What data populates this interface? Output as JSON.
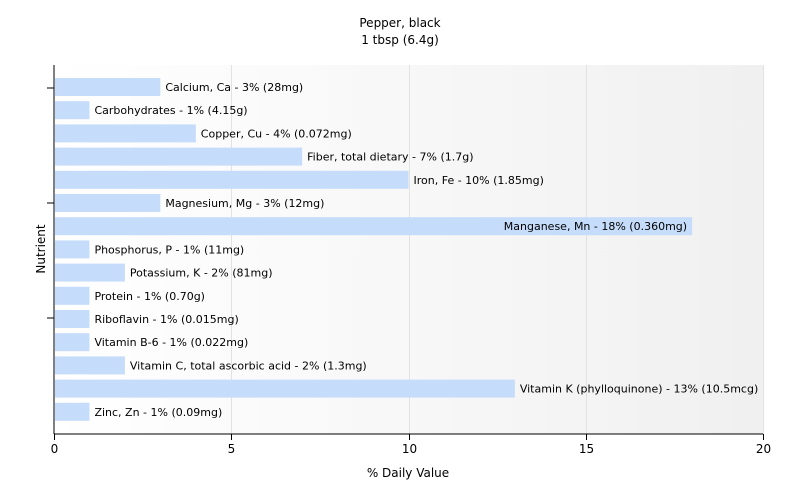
{
  "chart_data": {
    "type": "bar",
    "orientation": "horizontal",
    "title": "Pepper, black",
    "subtitle": "1 tbsp (6.4g)",
    "xlabel": "% Daily Value",
    "ylabel": "Nutrient",
    "xlim": [
      0,
      20
    ],
    "xticks": [
      0,
      5,
      10,
      15,
      20
    ],
    "grid": true,
    "legend": "none",
    "bar_color": "#c6dcfb",
    "categories": [
      "Calcium, Ca",
      "Carbohydrates",
      "Copper, Cu",
      "Fiber, total dietary",
      "Iron, Fe",
      "Magnesium, Mg",
      "Manganese, Mn",
      "Phosphorus, P",
      "Potassium, K",
      "Protein",
      "Riboflavin",
      "Vitamin B-6",
      "Vitamin C, total ascorbic acid",
      "Vitamin K (phylloquinone)",
      "Zinc, Zn"
    ],
    "values": [
      3,
      1,
      4,
      7,
      10,
      3,
      18,
      1,
      2,
      1,
      1,
      1,
      2,
      13,
      1
    ],
    "labels": [
      "Calcium, Ca - 3% (28mg)",
      "Carbohydrates - 1% (4.15g)",
      "Copper, Cu - 4% (0.072mg)",
      "Fiber, total dietary - 7% (1.7g)",
      "Iron, Fe - 10% (1.85mg)",
      "Magnesium, Mg - 3% (12mg)",
      "Manganese, Mn - 18% (0.360mg)",
      "Phosphorus, P - 1% (11mg)",
      "Potassium, K - 2% (81mg)",
      "Protein - 1% (0.70g)",
      "Riboflavin - 1% (0.015mg)",
      "Vitamin B-6 - 1% (0.022mg)",
      "Vitamin C, total ascorbic acid - 2% (1.3mg)",
      "Vitamin K (phylloquinone) - 13% (10.5mcg)",
      "Zinc, Zn - 1% (0.09mg)"
    ]
  }
}
